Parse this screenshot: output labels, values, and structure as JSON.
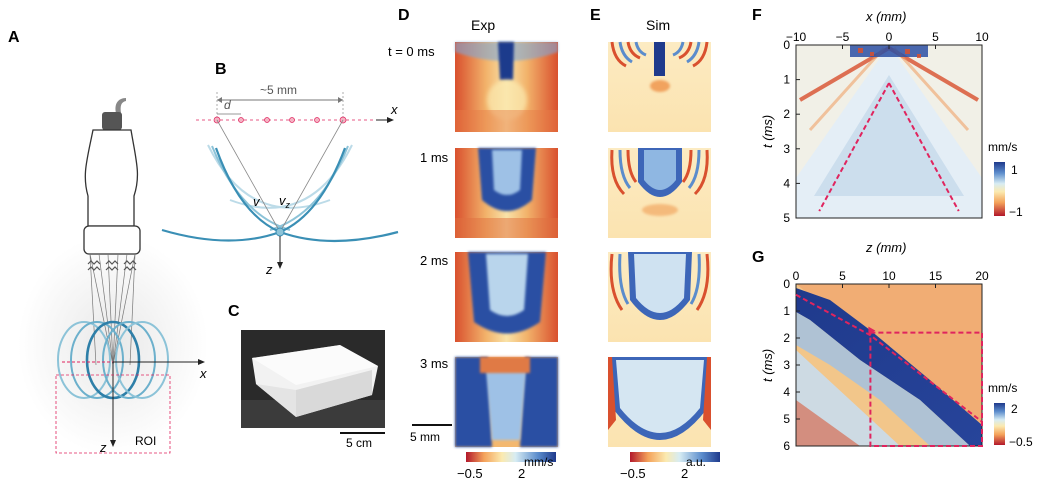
{
  "panels": {
    "A": {
      "letter": "A",
      "x_label": "x",
      "z_label": "z",
      "roi_label": "ROI"
    },
    "B": {
      "letter": "B",
      "span_label": "~5 mm",
      "d_label": "d",
      "x_label": "x",
      "z_label": "z",
      "v_label": "v",
      "vz_label": "v",
      "vz_sub": "z"
    },
    "C": {
      "letter": "C",
      "scalebar_label": "5 cm"
    },
    "D": {
      "letter": "D",
      "title": "Exp",
      "time_labels": [
        "t = 0 ms",
        "1 ms",
        "2 ms",
        "3 ms"
      ],
      "scalebar_label": "5 mm",
      "colorbar": {
        "min": "−0.5",
        "max": "2",
        "unit": "mm/s"
      }
    },
    "E": {
      "letter": "E",
      "title": "Sim",
      "colorbar": {
        "min": "−0.5",
        "max": "2",
        "unit": "a.u."
      }
    },
    "F": {
      "letter": "F",
      "xlabel": "x (mm)",
      "ylabel": "t (ms)",
      "xticks": [
        "−10",
        "−5",
        "0",
        "5",
        "10"
      ],
      "yticks": [
        "0",
        "1",
        "2",
        "3",
        "4",
        "5"
      ],
      "colorbar": {
        "unit": "mm/s",
        "max": "1",
        "min": "−1"
      }
    },
    "G": {
      "letter": "G",
      "xlabel": "z (mm)",
      "ylabel": "t (ms)",
      "xticks": [
        "0",
        "5",
        "10",
        "15",
        "20"
      ],
      "yticks": [
        "0",
        "1",
        "2",
        "3",
        "4",
        "5",
        "6"
      ],
      "colorbar": {
        "unit": "mm/s",
        "max": "2",
        "min": "−0.5"
      }
    }
  },
  "chart_data": [
    {
      "panel": "F",
      "type": "heatmap",
      "xlabel": "x (mm)",
      "ylabel": "t (ms)",
      "xlim": [
        -10,
        10
      ],
      "ylim": [
        0,
        5
      ],
      "y_inverted": true,
      "colorbar_range": [
        -1,
        1
      ],
      "colorbar_unit": "mm/s",
      "guide_lines": [
        {
          "style": "dashed",
          "color": "#e0245e",
          "points": [
            [
              0,
              1.1
            ],
            [
              -7.5,
              4.8
            ]
          ]
        },
        {
          "style": "dashed",
          "color": "#e0245e",
          "points": [
            [
              0,
              1.1
            ],
            [
              7.5,
              4.8
            ]
          ]
        }
      ]
    },
    {
      "panel": "G",
      "type": "heatmap",
      "xlabel": "z (mm)",
      "ylabel": "t (ms)",
      "xlim": [
        0,
        20
      ],
      "ylim": [
        0,
        6
      ],
      "y_inverted": true,
      "colorbar_range": [
        -0.5,
        2
      ],
      "colorbar_unit": "mm/s",
      "guide_lines": [
        {
          "style": "dashed",
          "color": "#e0245e",
          "points": [
            [
              0,
              0.4
            ],
            [
              8,
              1.9
            ],
            [
              20,
              5.1
            ]
          ]
        }
      ],
      "highlight_box": {
        "x": [
          8,
          20
        ],
        "t": [
          1.8,
          6
        ]
      }
    }
  ],
  "colors": {
    "accent_pink": "#e0245e",
    "transducer_blue": "#3a8fb5",
    "cmap_blue": "#1f3a8c",
    "cmap_red": "#b2182b",
    "cmap_yellow": "#fde7a6"
  }
}
